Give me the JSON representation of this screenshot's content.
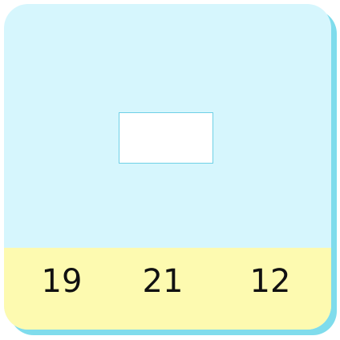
{
  "card": {
    "background_color": "#d6f6fd",
    "shadow_color": "#7fdcec",
    "answer_box_value": ""
  },
  "choices": {
    "background_color": "#fdfab0",
    "items": [
      "19",
      "21",
      "12"
    ]
  }
}
